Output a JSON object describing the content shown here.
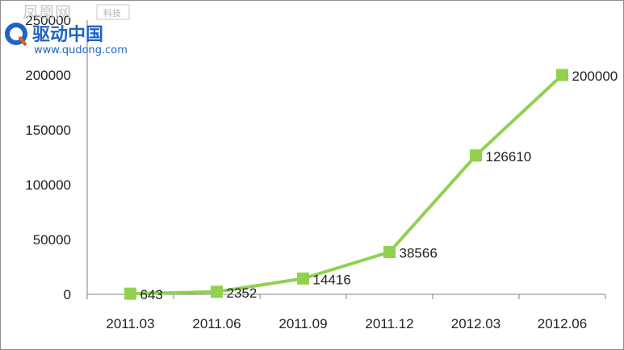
{
  "chart_data": {
    "type": "line",
    "categories": [
      "2011.03",
      "2011.06",
      "2011.09",
      "2011.12",
      "2012.03",
      "2012.06"
    ],
    "series": [
      {
        "values": [
          643,
          2352,
          14416,
          38566,
          126610,
          200000
        ]
      }
    ],
    "data_labels": [
      "643",
      "2352",
      "14416",
      "38566",
      "126610",
      "200000"
    ],
    "y_ticks": [
      "0",
      "50000",
      "100000",
      "150000",
      "200000",
      "250000"
    ],
    "ylim": [
      0,
      250000
    ],
    "grid": false,
    "legend": "none",
    "colors": {
      "series": "#92d050",
      "axis": "#808080",
      "text": "#222222"
    }
  },
  "watermark": {
    "top_text": "凤凰网",
    "badge_text": "科技",
    "brand_text": "驱动中国",
    "url_text": "www.qudong.com"
  }
}
